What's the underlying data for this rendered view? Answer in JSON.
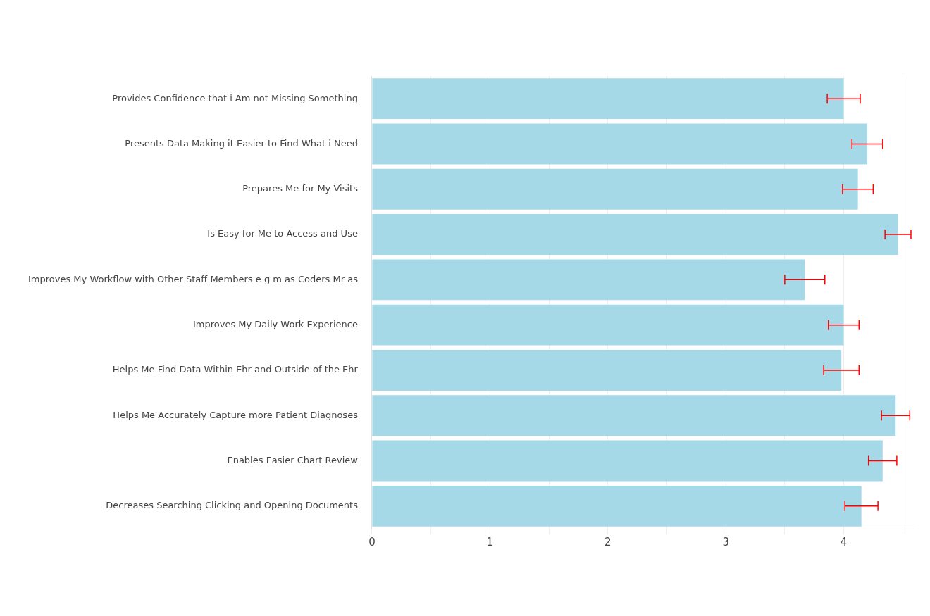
{
  "chart_data": {
    "type": "bar",
    "orientation": "horizontal",
    "categories": [
      "Provides Confidence that i Am not Missing Something",
      "Presents Data Making it Easier to Find What i Need",
      "Prepares Me for My Visits",
      "Is Easy for Me to Access and Use",
      "Improves My Workflow with Other Staff Members e g m as Coders Mr as",
      "Improves My Daily Work Experience",
      "Helps Me Find Data Within Ehr and Outside of the Ehr",
      "Helps Me Accurately Capture more Patient Diagnoses",
      "Enables Easier Chart Review",
      "Decreases Searching Clicking and Opening Documents"
    ],
    "series": [
      {
        "color": "#a6d9e8",
        "values": [
          4.0,
          4.2,
          4.12,
          4.46,
          3.67,
          4.0,
          3.98,
          4.44,
          4.33,
          4.15
        ],
        "errors": [
          0.14,
          0.13,
          0.13,
          0.11,
          0.17,
          0.13,
          0.15,
          0.12,
          0.12,
          0.14
        ]
      }
    ],
    "xlim": [
      0,
      4.6
    ],
    "xticks": [
      0,
      {
        "value": 0.5,
        "label": null
      },
      1,
      {
        "value": 1.5,
        "label": null
      },
      2,
      {
        "value": 2.5,
        "label": null
      },
      3,
      {
        "value": 3.5,
        "label": null
      },
      4,
      {
        "value": 4.5,
        "label": null
      }
    ],
    "grid": "x",
    "legend": false
  }
}
